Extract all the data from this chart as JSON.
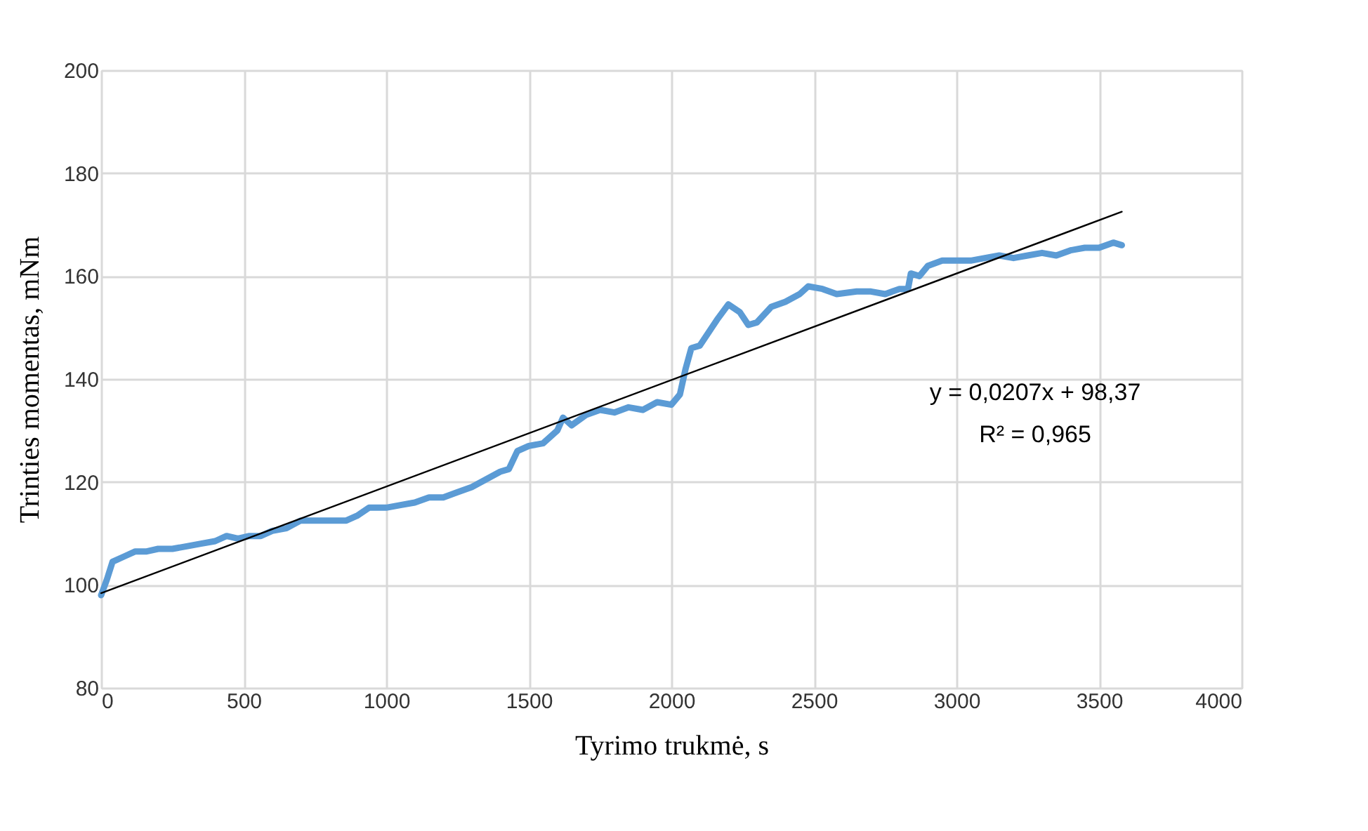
{
  "chart_data": {
    "type": "line",
    "xlabel": "Tyrimo trukmė, s",
    "ylabel": "Trinties momentas,  mNm",
    "xlim": [
      0,
      4000
    ],
    "xticks": [
      0,
      500,
      1000,
      1500,
      2000,
      2500,
      3000,
      3500,
      4000
    ],
    "ylim": [
      80,
      200
    ],
    "yticks": [
      80,
      100,
      120,
      140,
      160,
      180,
      200
    ],
    "grid": true,
    "marker": "none",
    "line_style": "solid",
    "annotations": [
      "y = 0,0207x + 98,37",
      "R² = 0,965"
    ],
    "series": [
      {
        "color": "#5b9bd5",
        "x": [
          0,
          20,
          40,
          80,
          120,
          160,
          200,
          250,
          300,
          350,
          400,
          440,
          480,
          520,
          560,
          600,
          650,
          700,
          750,
          800,
          860,
          900,
          940,
          1000,
          1050,
          1100,
          1150,
          1200,
          1250,
          1300,
          1350,
          1400,
          1430,
          1460,
          1500,
          1550,
          1600,
          1620,
          1650,
          1700,
          1750,
          1800,
          1850,
          1900,
          1950,
          2000,
          2030,
          2050,
          2070,
          2100,
          2130,
          2160,
          2200,
          2240,
          2270,
          2300,
          2350,
          2400,
          2450,
          2480,
          2530,
          2580,
          2650,
          2700,
          2750,
          2800,
          2830,
          2840,
          2870,
          2900,
          2950,
          3000,
          3050,
          3100,
          3150,
          3200,
          3250,
          3300,
          3350,
          3400,
          3450,
          3500,
          3550,
          3580
        ],
        "values": [
          98,
          101,
          104.5,
          105.5,
          106.5,
          106.5,
          107,
          107,
          107.5,
          108,
          108.5,
          109.5,
          109,
          109.5,
          109.5,
          110.5,
          111,
          112.5,
          112.5,
          112.5,
          112.5,
          113.5,
          115,
          115,
          115.5,
          116,
          117,
          117,
          118,
          119,
          120.5,
          122,
          122.5,
          126,
          127,
          127.5,
          130,
          132.5,
          131,
          133,
          134,
          133.5,
          134.5,
          134,
          135.5,
          135,
          137,
          142,
          146,
          146.5,
          149,
          151.5,
          154.5,
          153,
          150.5,
          151,
          154,
          155,
          156.5,
          158,
          157.5,
          156.5,
          157,
          157,
          156.5,
          157.5,
          157.5,
          160.5,
          160,
          162,
          163,
          163,
          163,
          163.5,
          164,
          163.5,
          164,
          164.5,
          164,
          165,
          165.5,
          165.5,
          166.5,
          166
        ]
      },
      {
        "type": "line",
        "color": "#000000",
        "x": [
          0,
          3580
        ],
        "values": [
          98.4,
          172.5
        ]
      }
    ]
  }
}
